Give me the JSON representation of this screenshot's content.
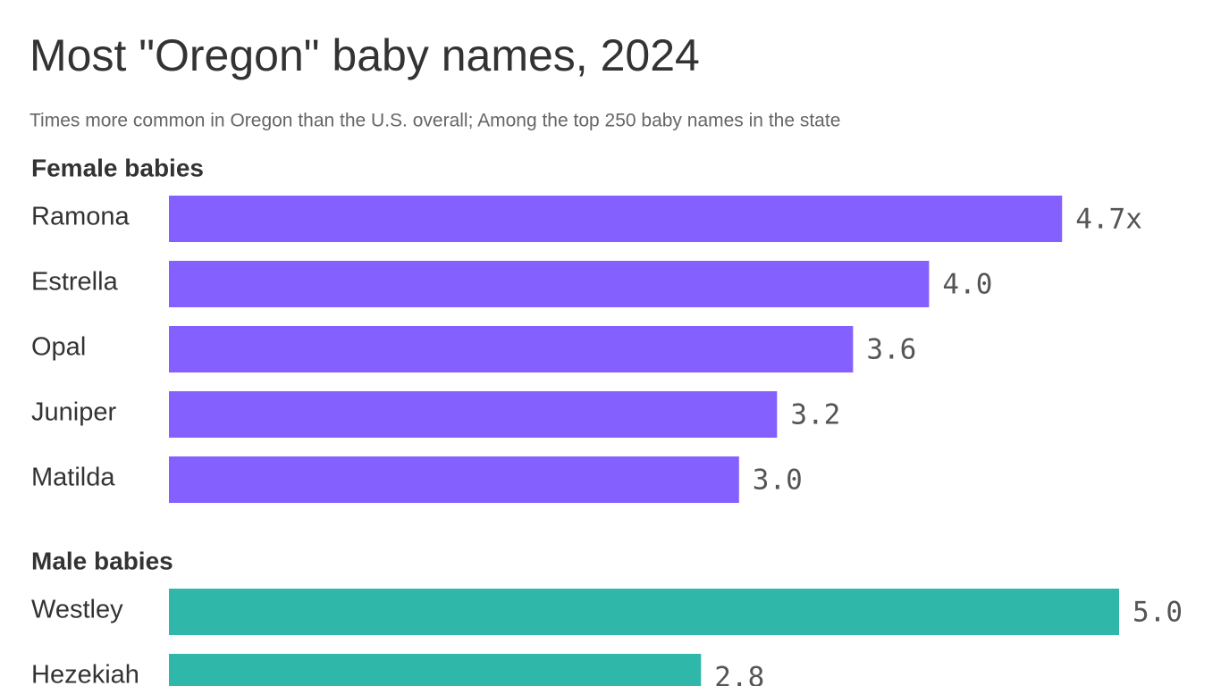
{
  "title": "Most \"Oregon\" baby names, 2024",
  "subtitle": "Times more common in Oregon than the U.S. overall; Among the top 250 baby names in the state",
  "chart_data": [
    {
      "type": "bar",
      "orientation": "horizontal",
      "title": "Female babies",
      "categories": [
        "Ramona",
        "Estrella",
        "Opal",
        "Juniper",
        "Matilda"
      ],
      "values": [
        4.7,
        4.0,
        3.6,
        3.2,
        3.0
      ],
      "value_labels": [
        "4.7x",
        "4.0",
        "3.6",
        "3.2",
        "3.0"
      ],
      "color": "#8460ff",
      "xlim": [
        0,
        5
      ]
    },
    {
      "type": "bar",
      "orientation": "horizontal",
      "title": "Male babies",
      "categories": [
        "Westley",
        "Hezekiah"
      ],
      "values": [
        5.0,
        2.8
      ],
      "value_labels": [
        "5.0",
        "2.8"
      ],
      "color": "#2fb8aa",
      "xlim": [
        0,
        5
      ]
    }
  ]
}
